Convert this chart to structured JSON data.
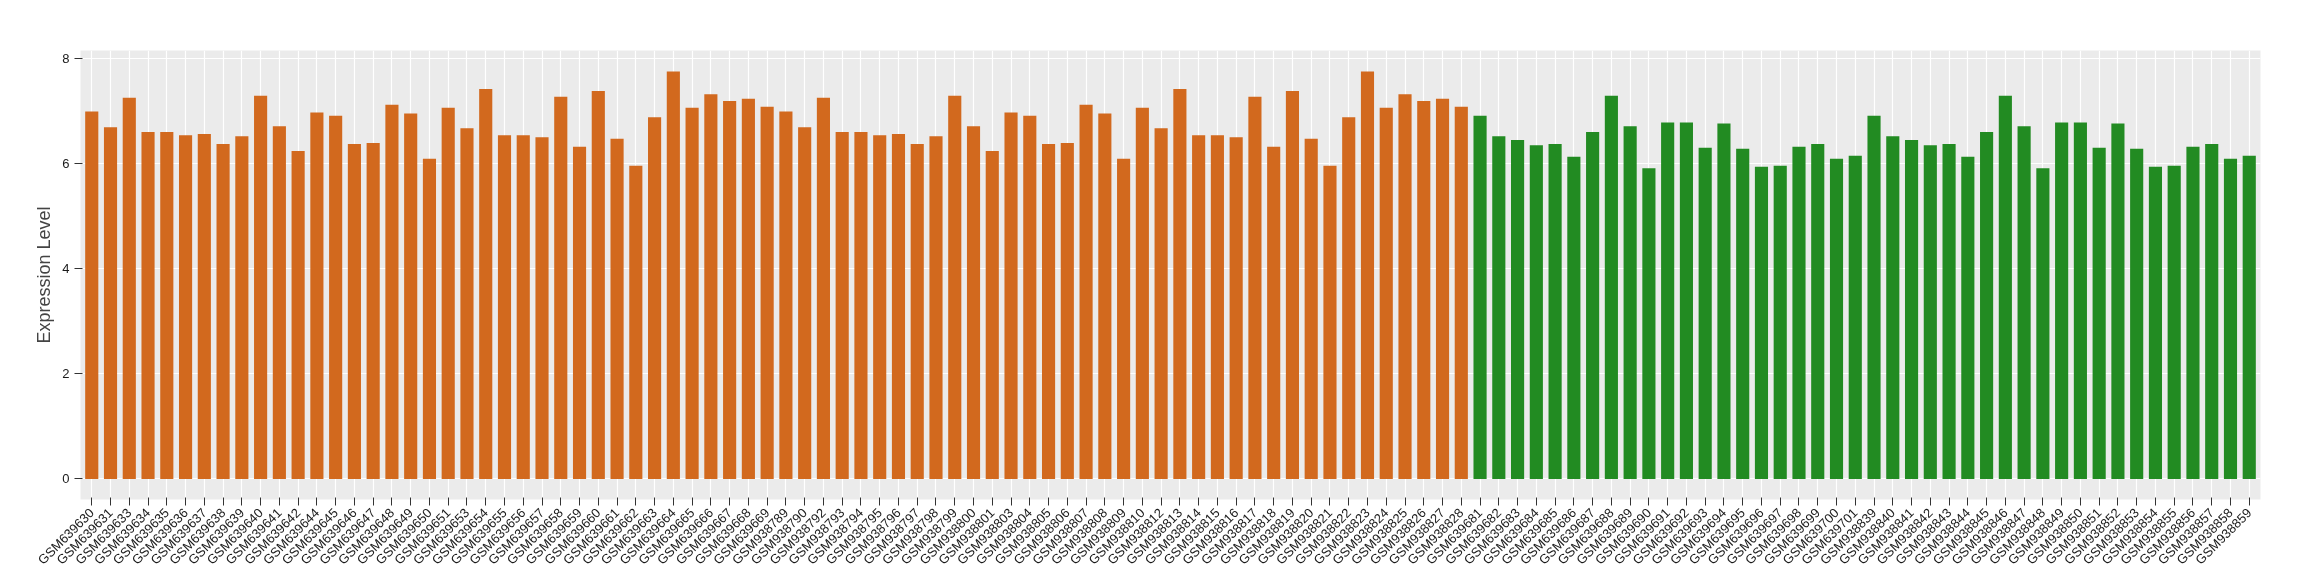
{
  "chart_data": {
    "type": "bar",
    "ylabel": "Expression Level",
    "categories": [
      "GSM639630",
      "GSM639631",
      "GSM639633",
      "GSM639634",
      "GSM639635",
      "GSM639636",
      "GSM639637",
      "GSM639638",
      "GSM639639",
      "GSM639640",
      "GSM639641",
      "GSM639642",
      "GSM639644",
      "GSM639645",
      "GSM639646",
      "GSM639647",
      "GSM639648",
      "GSM639649",
      "GSM639650",
      "GSM639651",
      "GSM639653",
      "GSM639654",
      "GSM639655",
      "GSM639656",
      "GSM639657",
      "GSM639658",
      "GSM639659",
      "GSM639660",
      "GSM639661",
      "GSM639662",
      "GSM639663",
      "GSM639664",
      "GSM639665",
      "GSM639666",
      "GSM639667",
      "GSM639668",
      "GSM639669",
      "GSM938789",
      "GSM938790",
      "GSM938792",
      "GSM938793",
      "GSM938794",
      "GSM938795",
      "GSM938796",
      "GSM938797",
      "GSM938798",
      "GSM938799",
      "GSM938800",
      "GSM938801",
      "GSM938803",
      "GSM938804",
      "GSM938805",
      "GSM938806",
      "GSM938807",
      "GSM938808",
      "GSM938809",
      "GSM938810",
      "GSM938812",
      "GSM938813",
      "GSM938814",
      "GSM938815",
      "GSM938816",
      "GSM938817",
      "GSM938818",
      "GSM938819",
      "GSM938820",
      "GSM938821",
      "GSM938822",
      "GSM938823",
      "GSM938824",
      "GSM938825",
      "GSM938826",
      "GSM938827",
      "GSM938828",
      "GSM639681",
      "GSM639682",
      "GSM639683",
      "GSM639684",
      "GSM639685",
      "GSM639686",
      "GSM639687",
      "GSM639688",
      "GSM639689",
      "GSM639690",
      "GSM639691",
      "GSM639692",
      "GSM639693",
      "GSM639694",
      "GSM639695",
      "GSM639696",
      "GSM639697",
      "GSM639698",
      "GSM639699",
      "GSM639700",
      "GSM639701",
      "GSM938839",
      "GSM938840",
      "GSM938841",
      "GSM938842",
      "GSM938843",
      "GSM938844",
      "GSM938845",
      "GSM938846",
      "GSM938847",
      "GSM938848",
      "GSM938849",
      "GSM938850",
      "GSM938851",
      "GSM938852",
      "GSM938853",
      "GSM938854",
      "GSM938855",
      "GSM938856",
      "GSM938857",
      "GSM938858",
      "GSM938859"
    ],
    "values": [
      6.99,
      6.69,
      7.25,
      6.6,
      6.6,
      6.54,
      6.56,
      6.37,
      6.52,
      7.29,
      6.71,
      6.24,
      6.97,
      6.91,
      6.37,
      6.39,
      7.12,
      6.95,
      6.09,
      7.06,
      6.67,
      7.42,
      6.54,
      6.54,
      6.5,
      7.27,
      6.32,
      7.38,
      6.47,
      5.96,
      6.88,
      7.75,
      7.06,
      7.32,
      7.19,
      7.23,
      7.08,
      6.99,
      6.69,
      7.25,
      6.6,
      6.6,
      6.54,
      6.56,
      6.37,
      6.52,
      7.29,
      6.71,
      6.24,
      6.97,
      6.91,
      6.37,
      6.39,
      7.12,
      6.95,
      6.09,
      7.06,
      6.67,
      7.42,
      6.54,
      6.54,
      6.5,
      7.27,
      6.32,
      7.38,
      6.47,
      5.96,
      6.88,
      7.75,
      7.06,
      7.32,
      7.19,
      7.23,
      7.08,
      6.91,
      6.52,
      6.45,
      6.35,
      6.37,
      6.13,
      6.6,
      7.29,
      6.71,
      5.91,
      6.78,
      6.78,
      6.3,
      6.76,
      6.28,
      5.94,
      5.96,
      6.32,
      6.37,
      6.09,
      6.15,
      6.91,
      6.52,
      6.45,
      6.35,
      6.37,
      6.13,
      6.6,
      7.29,
      6.71,
      5.91,
      6.78,
      6.78,
      6.3,
      6.76,
      6.28,
      5.94,
      5.96,
      6.32,
      6.37,
      6.09,
      6.15
    ],
    "colors": [
      "#d2691e",
      "#d2691e",
      "#d2691e",
      "#d2691e",
      "#d2691e",
      "#d2691e",
      "#d2691e",
      "#d2691e",
      "#d2691e",
      "#d2691e",
      "#d2691e",
      "#d2691e",
      "#d2691e",
      "#d2691e",
      "#d2691e",
      "#d2691e",
      "#d2691e",
      "#d2691e",
      "#d2691e",
      "#d2691e",
      "#d2691e",
      "#d2691e",
      "#d2691e",
      "#d2691e",
      "#d2691e",
      "#d2691e",
      "#d2691e",
      "#d2691e",
      "#d2691e",
      "#d2691e",
      "#d2691e",
      "#d2691e",
      "#d2691e",
      "#d2691e",
      "#d2691e",
      "#d2691e",
      "#d2691e",
      "#d2691e",
      "#d2691e",
      "#d2691e",
      "#d2691e",
      "#d2691e",
      "#d2691e",
      "#d2691e",
      "#d2691e",
      "#d2691e",
      "#d2691e",
      "#d2691e",
      "#d2691e",
      "#d2691e",
      "#d2691e",
      "#d2691e",
      "#d2691e",
      "#d2691e",
      "#d2691e",
      "#d2691e",
      "#d2691e",
      "#d2691e",
      "#d2691e",
      "#d2691e",
      "#d2691e",
      "#d2691e",
      "#d2691e",
      "#d2691e",
      "#d2691e",
      "#d2691e",
      "#d2691e",
      "#d2691e",
      "#d2691e",
      "#d2691e",
      "#d2691e",
      "#d2691e",
      "#d2691e",
      "#d2691e",
      "#228b22",
      "#228b22",
      "#228b22",
      "#228b22",
      "#228b22",
      "#228b22",
      "#228b22",
      "#228b22",
      "#228b22",
      "#228b22",
      "#228b22",
      "#228b22",
      "#228b22",
      "#228b22",
      "#228b22",
      "#228b22",
      "#228b22",
      "#228b22",
      "#228b22",
      "#228b22",
      "#228b22",
      "#228b22",
      "#228b22",
      "#228b22",
      "#228b22",
      "#228b22",
      "#228b22",
      "#228b22",
      "#228b22",
      "#228b22",
      "#228b22",
      "#228b22",
      "#228b22",
      "#228b22",
      "#228b22",
      "#228b22",
      "#228b22",
      "#228b22",
      "#228b22",
      "#228b22",
      "#228b22",
      "#228b22"
    ],
    "ylim": [
      -0.39,
      8.15
    ],
    "yticks": [
      0,
      2,
      4,
      6,
      8
    ],
    "grid": true
  }
}
